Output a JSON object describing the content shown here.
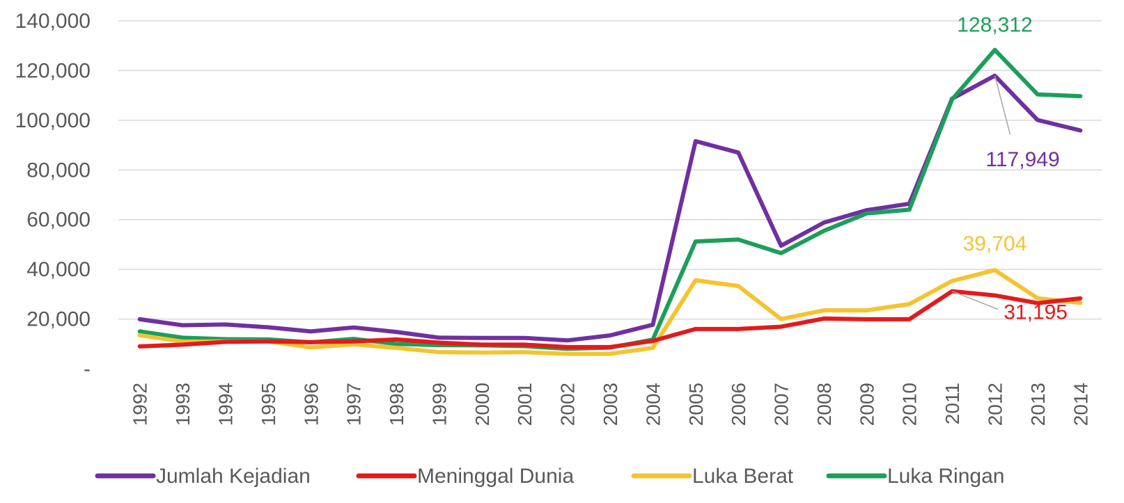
{
  "chart_data": {
    "type": "line",
    "title": "",
    "xlabel": "",
    "ylabel": "",
    "categories": [
      "1992",
      "1993",
      "1994",
      "1995",
      "1996",
      "1997",
      "1998",
      "1999",
      "2000",
      "2001",
      "2002",
      "2003",
      "2004",
      "2005",
      "2006",
      "2007",
      "2008",
      "2009",
      "2010",
      "2011",
      "2012",
      "2013",
      "2014"
    ],
    "ylim": [
      0,
      140000
    ],
    "yticks": [
      {
        "value": 0,
        "label": "-"
      },
      {
        "value": 20000,
        "label": "20,000"
      },
      {
        "value": 40000,
        "label": "40,000"
      },
      {
        "value": 60000,
        "label": "60,000"
      },
      {
        "value": 80000,
        "label": "80,000"
      },
      {
        "value": 100000,
        "label": "100,000"
      },
      {
        "value": 120000,
        "label": "120,000"
      },
      {
        "value": 140000,
        "label": "140,000"
      }
    ],
    "grid": true,
    "legend": "bottom",
    "series": [
      {
        "name": "Jumlah Kejadian",
        "color": "#7030a0",
        "values": [
          19900,
          17500,
          17800,
          16700,
          15000,
          16600,
          14800,
          12500,
          12400,
          12400,
          11400,
          13400,
          17700,
          91600,
          87000,
          49500,
          58800,
          63800,
          66400,
          108700,
          117949,
          100100,
          95900
        ]
      },
      {
        "name": "Meninggal Dunia",
        "color": "#e31a1c",
        "values": [
          9000,
          9700,
          10800,
          11000,
          10700,
          11000,
          11800,
          10500,
          9700,
          9700,
          8700,
          8700,
          11200,
          16000,
          16000,
          16900,
          20200,
          19900,
          19900,
          31195,
          29500,
          26400,
          28300
        ]
      },
      {
        "name": "Luka Berat",
        "color": "#f4c430",
        "values": [
          13500,
          10900,
          11000,
          11000,
          8600,
          9800,
          8400,
          6700,
          6500,
          6700,
          6000,
          6000,
          8400,
          35600,
          33300,
          20000,
          23500,
          23500,
          26000,
          35300,
          39704,
          28400,
          26500
        ]
      },
      {
        "name": "Luka Ringan",
        "color": "#1d9e5b",
        "values": [
          15000,
          12500,
          11900,
          11800,
          10600,
          12000,
          10000,
          9500,
          9400,
          9100,
          8000,
          8500,
          11700,
          51200,
          52000,
          46500,
          55500,
          62500,
          64000,
          108400,
          128312,
          110400,
          109700
        ]
      }
    ],
    "annotations": [
      {
        "text": "128,312",
        "series": 3,
        "category": "2012",
        "color": "#1d9e5b"
      },
      {
        "text": "117,949",
        "series": 0,
        "category": "2012",
        "color": "#7030a0"
      },
      {
        "text": "39,704",
        "series": 2,
        "category": "2012",
        "color": "#f4c430"
      },
      {
        "text": "31,195",
        "series": 1,
        "category": "2011",
        "color": "#e31a1c"
      }
    ]
  }
}
